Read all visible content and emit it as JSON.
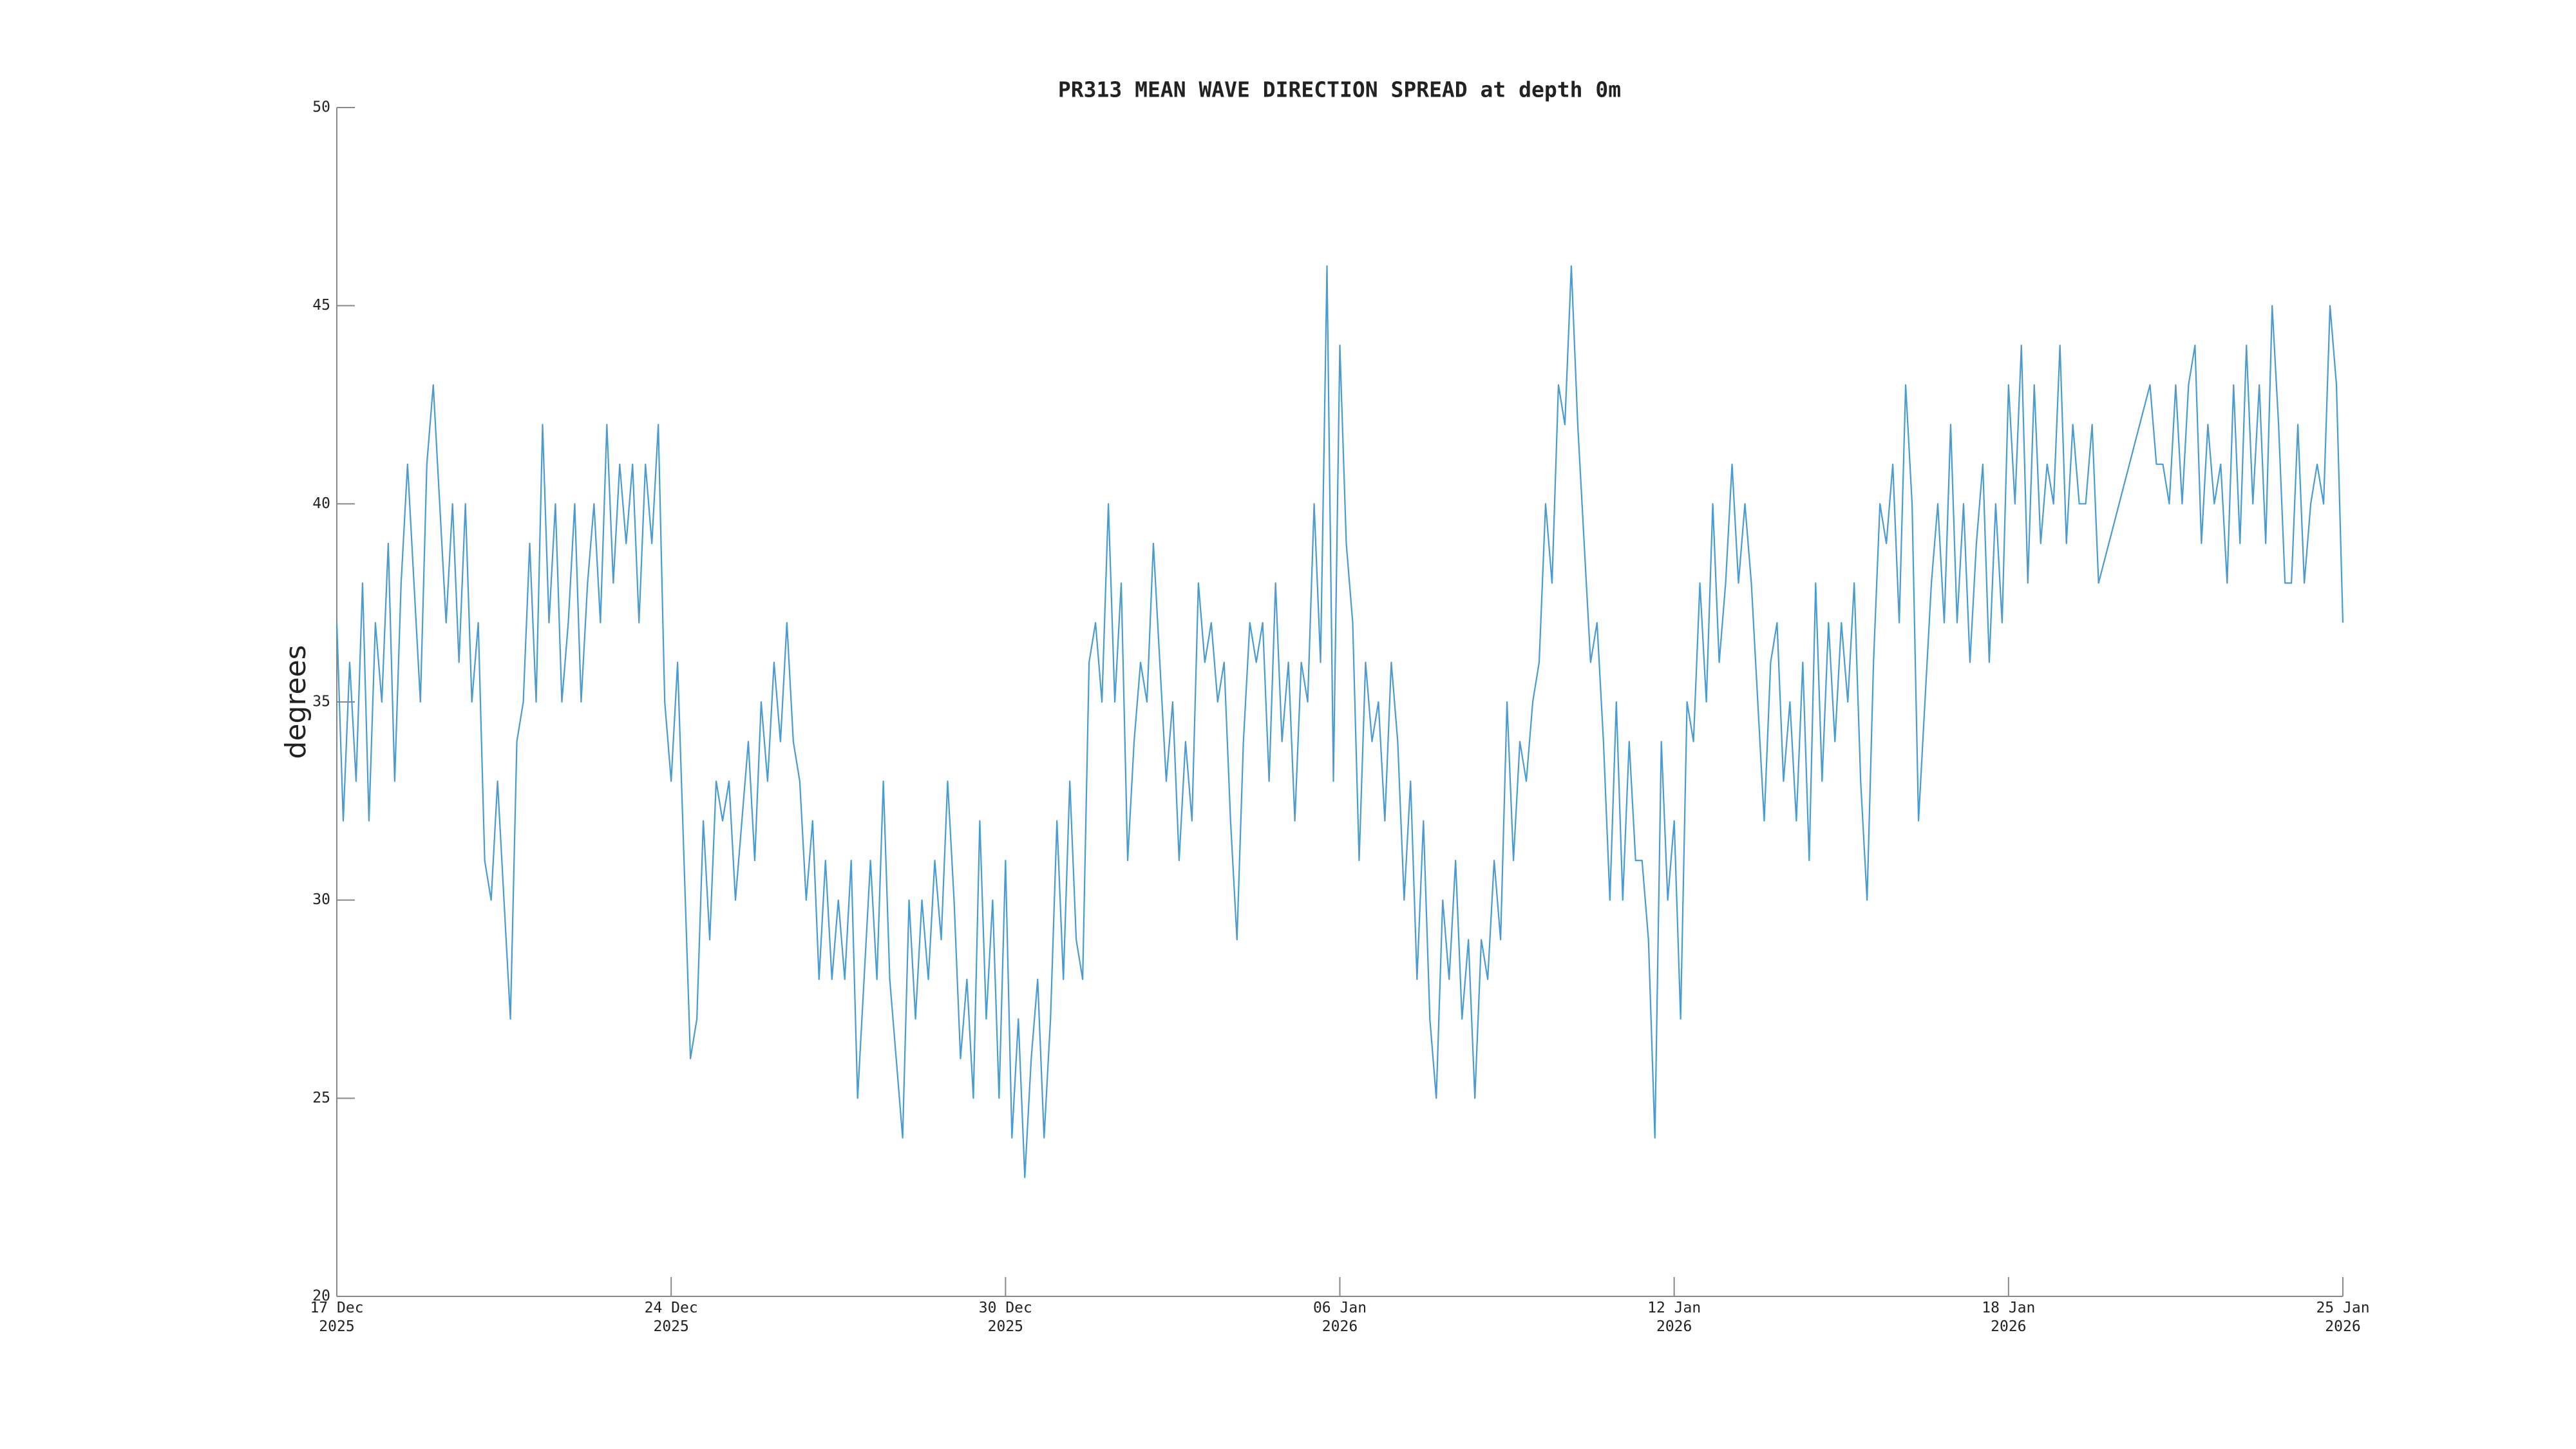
{
  "chart_data": {
    "type": "line",
    "title": "PR313 MEAN WAVE DIRECTION SPREAD at depth 0m",
    "ylabel": "degrees",
    "color": "#4a9bd1",
    "xlim": [
      0,
      39
    ],
    "ylim": [
      20,
      50
    ],
    "yticks": [
      20,
      25,
      30,
      35,
      40,
      45,
      50
    ],
    "xticks": [
      {
        "value": 0,
        "label": "17 Dec\n2025"
      },
      {
        "value": 6.5,
        "label": "24 Dec\n2025"
      },
      {
        "value": 13,
        "label": "30 Dec\n2025"
      },
      {
        "value": 19.5,
        "label": "06 Jan\n2026"
      },
      {
        "value": 26,
        "label": "12 Jan\n2026"
      },
      {
        "value": 32.5,
        "label": "18 Jan\n2026"
      },
      {
        "value": 39,
        "label": "25 Jan\n2026"
      }
    ],
    "x": [
      0,
      0.125,
      0.25,
      0.375,
      0.5,
      0.625,
      0.75,
      0.875,
      1,
      1.125,
      1.25,
      1.375,
      1.5,
      1.625,
      1.75,
      1.875,
      2,
      2.125,
      2.25,
      2.375,
      2.5,
      2.625,
      2.75,
      2.875,
      3,
      3.125,
      3.25,
      3.375,
      3.5,
      3.625,
      3.75,
      3.875,
      4,
      4.125,
      4.25,
      4.375,
      4.5,
      4.625,
      4.75,
      4.875,
      5,
      5.125,
      5.25,
      5.375,
      5.5,
      5.625,
      5.75,
      5.875,
      6,
      6.125,
      6.25,
      6.375,
      6.5,
      6.625,
      6.75,
      6.875,
      7,
      7.125,
      7.25,
      7.375,
      7.5,
      7.625,
      7.75,
      7.875,
      8,
      8.125,
      8.25,
      8.375,
      8.5,
      8.625,
      8.75,
      8.875,
      9,
      9.125,
      9.25,
      9.375,
      9.5,
      9.625,
      9.75,
      9.875,
      10,
      10.125,
      10.25,
      10.375,
      10.5,
      10.625,
      10.75,
      10.875,
      11,
      11.125,
      11.25,
      11.375,
      11.5,
      11.625,
      11.75,
      11.875,
      12,
      12.125,
      12.25,
      12.375,
      12.5,
      12.625,
      12.75,
      12.875,
      13,
      13.125,
      13.25,
      13.375,
      13.5,
      13.625,
      13.75,
      13.875,
      14,
      14.125,
      14.25,
      14.375,
      14.5,
      14.625,
      14.75,
      14.875,
      15,
      15.125,
      15.25,
      15.375,
      15.5,
      15.625,
      15.75,
      15.875,
      16,
      16.125,
      16.25,
      16.375,
      16.5,
      16.625,
      16.75,
      16.875,
      17,
      17.125,
      17.25,
      17.375,
      17.5,
      17.625,
      17.75,
      17.875,
      18,
      18.125,
      18.25,
      18.375,
      18.5,
      18.625,
      18.75,
      18.875,
      19,
      19.125,
      19.25,
      19.375,
      19.5,
      19.625,
      19.75,
      19.875,
      20,
      20.125,
      20.25,
      20.375,
      20.5,
      20.625,
      20.75,
      20.875,
      21,
      21.125,
      21.25,
      21.375,
      21.5,
      21.625,
      21.75,
      21.875,
      22,
      22.125,
      22.25,
      22.375,
      22.5,
      22.625,
      22.75,
      22.875,
      23,
      23.125,
      23.25,
      23.375,
      23.5,
      23.625,
      23.75,
      23.875,
      24,
      24.125,
      24.25,
      24.375,
      24.5,
      24.625,
      24.75,
      24.875,
      25,
      25.125,
      25.25,
      25.375,
      25.5,
      25.625,
      25.75,
      25.875,
      26,
      26.125,
      26.25,
      26.375,
      26.5,
      26.625,
      26.75,
      26.875,
      27,
      27.125,
      27.25,
      27.375,
      27.5,
      27.625,
      27.75,
      27.875,
      28,
      28.125,
      28.25,
      28.375,
      28.5,
      28.625,
      28.75,
      28.875,
      29,
      29.125,
      29.25,
      29.375,
      29.5,
      29.625,
      29.75,
      29.875,
      30,
      30.125,
      30.25,
      30.375,
      30.5,
      30.625,
      30.75,
      30.875,
      31,
      31.125,
      31.25,
      31.375,
      31.5,
      31.625,
      31.75,
      31.875,
      32,
      32.125,
      32.25,
      32.375,
      32.5,
      32.625,
      32.75,
      32.875,
      33,
      33.125,
      33.25,
      33.375,
      33.5,
      33.625,
      33.75,
      33.875,
      34,
      34.125,
      34.25,
      35.25,
      35.375,
      35.5,
      35.625,
      35.75,
      35.875,
      36,
      36.125,
      36.25,
      36.375,
      36.5,
      36.625,
      36.75,
      36.875,
      37,
      37.125,
      37.25,
      37.375,
      37.5,
      37.625,
      37.75,
      37.875,
      38,
      38.125,
      38.25,
      38.375,
      38.5,
      38.625,
      38.75,
      38.875,
      39
    ],
    "values": [
      37,
      32,
      36,
      33,
      38,
      32,
      37,
      35,
      39,
      33,
      38,
      41,
      38,
      35,
      41,
      43,
      40,
      37,
      40,
      36,
      40,
      35,
      37,
      31,
      30,
      33,
      30,
      27,
      34,
      35,
      39,
      35,
      42,
      37,
      40,
      35,
      37,
      40,
      35,
      38,
      40,
      37,
      42,
      38,
      41,
      39,
      41,
      37,
      41,
      39,
      42,
      35,
      33,
      36,
      31,
      26,
      27,
      32,
      29,
      33,
      32,
      33,
      30,
      32,
      34,
      31,
      35,
      33,
      36,
      34,
      37,
      34,
      33,
      30,
      32,
      28,
      31,
      28,
      30,
      28,
      31,
      25,
      28,
      31,
      28,
      33,
      28,
      26,
      24,
      30,
      27,
      30,
      28,
      31,
      29,
      33,
      30,
      26,
      28,
      25,
      32,
      27,
      30,
      25,
      31,
      24,
      27,
      23,
      26,
      28,
      24,
      27,
      32,
      28,
      33,
      29,
      28,
      36,
      37,
      35,
      40,
      35,
      38,
      31,
      34,
      36,
      35,
      39,
      36,
      33,
      35,
      31,
      34,
      32,
      38,
      36,
      37,
      35,
      36,
      32,
      29,
      34,
      37,
      36,
      37,
      33,
      38,
      34,
      36,
      32,
      36,
      35,
      40,
      36,
      46,
      33,
      44,
      39,
      37,
      31,
      36,
      34,
      35,
      32,
      36,
      34,
      30,
      33,
      28,
      32,
      27,
      25,
      30,
      28,
      31,
      27,
      29,
      25,
      29,
      28,
      31,
      29,
      35,
      31,
      34,
      33,
      35,
      36,
      40,
      38,
      43,
      42,
      46,
      42,
      39,
      36,
      37,
      34,
      30,
      35,
      30,
      34,
      31,
      31,
      29,
      24,
      34,
      30,
      32,
      27,
      35,
      34,
      38,
      35,
      40,
      36,
      38,
      41,
      38,
      40,
      38,
      35,
      32,
      36,
      37,
      33,
      35,
      32,
      36,
      31,
      38,
      33,
      37,
      34,
      37,
      35,
      38,
      33,
      30,
      36,
      40,
      39,
      41,
      37,
      43,
      40,
      32,
      35,
      38,
      40,
      37,
      42,
      37,
      40,
      36,
      39,
      41,
      36,
      40,
      37,
      43,
      40,
      44,
      38,
      43,
      39,
      41,
      40,
      44,
      39,
      42,
      40,
      40,
      42,
      38,
      43,
      41,
      41,
      40,
      43,
      40,
      43,
      44,
      39,
      42,
      40,
      41,
      38,
      43,
      39,
      44,
      40,
      43,
      39,
      45,
      42,
      38,
      38,
      42,
      38,
      40,
      41,
      40,
      45,
      43,
      37
    ]
  }
}
